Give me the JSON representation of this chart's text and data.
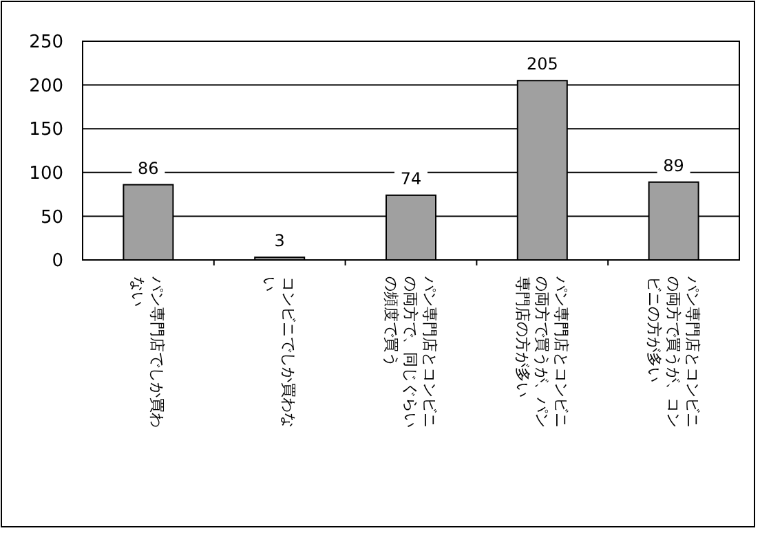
{
  "chart_data": {
    "type": "bar",
    "categories": [
      "パン専門店でしか買わない",
      "コンビニでしか買わない",
      "パン専門店とコンビニの両方で、同じぐらいの頻度で買う",
      "パン専門店とコンビニの両方で買うが、パン専門店の方が多い",
      "パン専門店とコンビニの両方で買うが、コンビニの方が多い"
    ],
    "values": [
      86,
      3,
      74,
      205,
      89
    ],
    "color": "#a0a0a0",
    "ylim": [
      0,
      250
    ],
    "yticks": [
      0,
      50,
      100,
      150,
      200,
      250
    ],
    "grid": "y",
    "data_labels": true
  }
}
